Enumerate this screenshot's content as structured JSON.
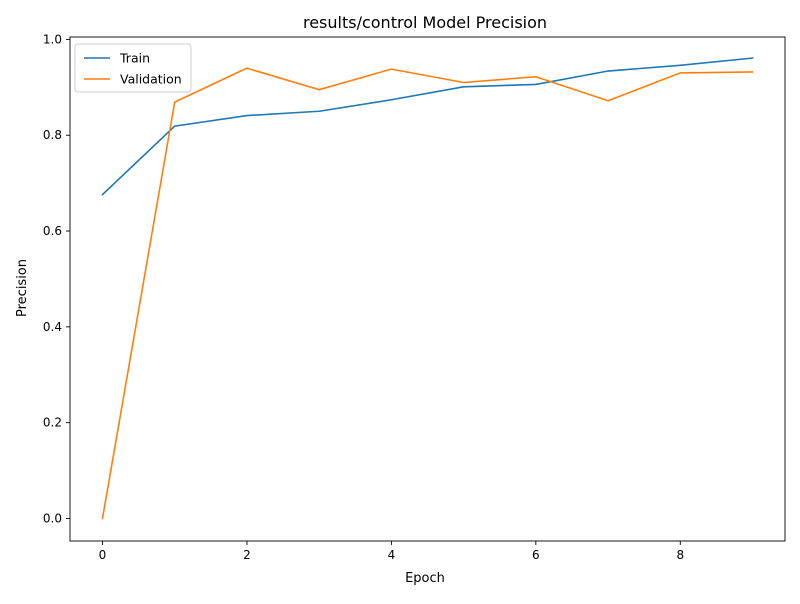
{
  "chart_data": {
    "type": "line",
    "title": "results/control Model Precision",
    "xlabel": "Epoch",
    "ylabel": "Precision",
    "x": [
      0,
      1,
      2,
      3,
      4,
      5,
      6,
      7,
      8,
      9
    ],
    "xlim": [
      -0.45,
      9.45
    ],
    "ylim": [
      -0.047,
      1.0
    ],
    "xticks": [
      0,
      2,
      4,
      6,
      8
    ],
    "xtick_labels": [
      "0",
      "2",
      "4",
      "6",
      "8"
    ],
    "yticks": [
      0.0,
      0.2,
      0.4,
      0.6,
      0.8,
      1.0
    ],
    "ytick_labels": [
      "0.0",
      "0.2",
      "0.4",
      "0.6",
      "0.8",
      "1.0"
    ],
    "grid": false,
    "legend_position": "upper-left",
    "series": [
      {
        "name": "Train",
        "color": "#1f77b4",
        "values": [
          0.676,
          0.819,
          0.841,
          0.85,
          0.874,
          0.901,
          0.906,
          0.934,
          0.946,
          0.961
        ]
      },
      {
        "name": "Validation",
        "color": "#ff7f0e",
        "values": [
          0.0,
          0.869,
          0.94,
          0.895,
          0.938,
          0.91,
          0.922,
          0.872,
          0.93,
          0.932
        ]
      }
    ]
  }
}
